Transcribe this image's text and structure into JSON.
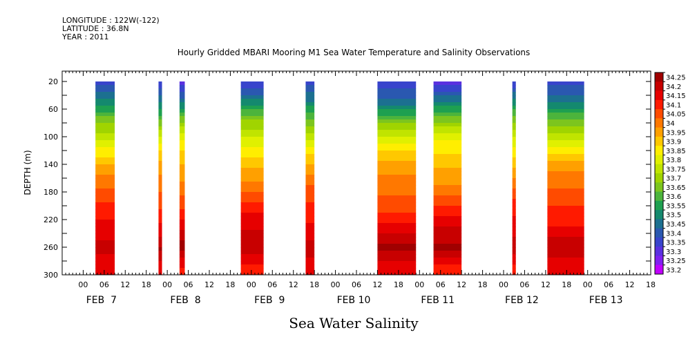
{
  "header": {
    "longitude": "LONGITUDE : 122W(-122)",
    "latitude": "LATITUDE : 36.8N",
    "year": "YEAR : 2011",
    "title": "Hourly Gridded MBARI Mooring M1 Sea Water Temperature and Salinity Observations"
  },
  "chart_data": {
    "type": "heatmap",
    "title": "Hourly Gridded MBARI Mooring M1 Sea Water Temperature and Salinity Observations",
    "xlabel": "",
    "ylabel": "DEPTH (m)",
    "variable_label": "Sea Water Salinity",
    "y_axis": {
      "range": [
        300,
        5
      ],
      "ticks": [
        20,
        60,
        100,
        140,
        180,
        220,
        260,
        300
      ],
      "direction": "depth increasing downward"
    },
    "x_axis": {
      "range_hours_from_feb7_00": [
        -6,
        162
      ],
      "hour_tick_labels": [
        "00",
        "06",
        "12",
        "18",
        "00",
        "06",
        "12",
        "18",
        "00",
        "06",
        "12",
        "18",
        "00",
        "06",
        "12",
        "18",
        "00",
        "06",
        "12",
        "18",
        "00",
        "06",
        "12",
        "18",
        "00",
        "06",
        "12",
        "18"
      ],
      "day_labels": [
        "FEB  7",
        "FEB  8",
        "FEB  9",
        "FEB 10",
        "FEB 11",
        "FEB 12",
        "FEB 13"
      ]
    },
    "colorbar": {
      "levels": [
        "34.25",
        "34.2",
        "34.15",
        "34.1",
        "34.05",
        "34",
        "33.95",
        "33.9",
        "33.85",
        "33.8",
        "33.75",
        "33.7",
        "33.65",
        "33.6",
        "33.55",
        "33.5",
        "33.45",
        "33.4",
        "33.35",
        "33.3",
        "33.25",
        "33.2"
      ],
      "colors": [
        "#a00000",
        "#c80000",
        "#e60000",
        "#ff1a00",
        "#ff4b00",
        "#ff7800",
        "#ffa000",
        "#ffc800",
        "#ffee00",
        "#e0f000",
        "#c0e400",
        "#a0d400",
        "#7cc51e",
        "#4cb43c",
        "#1ea050",
        "#14896e",
        "#1c7090",
        "#2a58b0",
        "#3844cc",
        "#5a30e0",
        "#8020f0",
        "#c000ff"
      ]
    },
    "data_segments_hours": [
      [
        3.5,
        9
      ],
      [
        21.5,
        22.5
      ],
      [
        27.5,
        29
      ],
      [
        45,
        51.5
      ],
      [
        63.5,
        66
      ],
      [
        84,
        95
      ],
      [
        100,
        108
      ],
      [
        122.5,
        123.5
      ],
      [
        132.5,
        143
      ]
    ],
    "profile": [
      {
        "depth": 20,
        "salinity": 33.35
      },
      {
        "depth": 50,
        "salinity": 33.5
      },
      {
        "depth": 80,
        "salinity": 33.7
      },
      {
        "depth": 110,
        "salinity": 33.85
      },
      {
        "depth": 140,
        "salinity": 33.95
      },
      {
        "depth": 180,
        "salinity": 34.05
      },
      {
        "depth": 220,
        "salinity": 34.15
      },
      {
        "depth": 260,
        "salinity": 34.25
      },
      {
        "depth": 290,
        "salinity": 34.15
      }
    ]
  }
}
